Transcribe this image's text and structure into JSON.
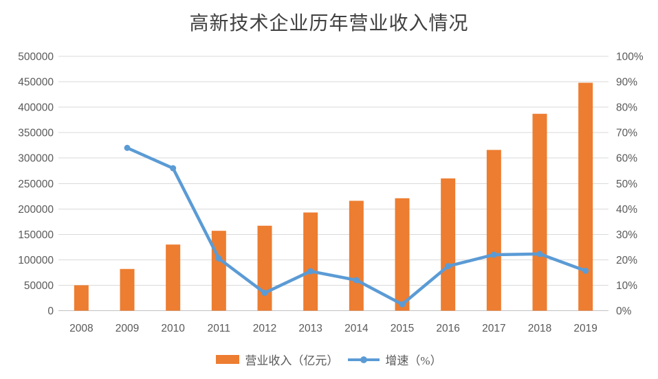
{
  "chart_data": {
    "type": "bar",
    "combo": "bar+line",
    "title": "高新技术企业历年营业收入情况",
    "categories": [
      "2008",
      "2009",
      "2010",
      "2011",
      "2012",
      "2013",
      "2014",
      "2015",
      "2016",
      "2017",
      "2018",
      "2019"
    ],
    "series": [
      {
        "name": "营业收入（亿元）",
        "type": "bar",
        "axis": "left",
        "color": "#ED7D31",
        "values": [
          50000,
          82000,
          130000,
          157000,
          167000,
          193000,
          216000,
          221000,
          260000,
          316000,
          387000,
          448000
        ]
      },
      {
        "name": "增速（%）",
        "type": "line",
        "axis": "right",
        "color": "#5B9BD5",
        "values": [
          null,
          64,
          56,
          20.5,
          7,
          15.5,
          12,
          2.5,
          17.5,
          22,
          22.3,
          15.7
        ]
      }
    ],
    "y_left": {
      "min": 0,
      "max": 500000,
      "step": 50000,
      "tick_labels": [
        "0",
        "50000",
        "100000",
        "150000",
        "200000",
        "250000",
        "300000",
        "350000",
        "400000",
        "450000",
        "500000"
      ]
    },
    "y_right": {
      "min": 0,
      "max": 100,
      "step": 10,
      "tick_labels": [
        "0%",
        "10%",
        "20%",
        "30%",
        "40%",
        "50%",
        "60%",
        "70%",
        "80%",
        "90%",
        "100%"
      ]
    },
    "grid": "horizontal",
    "legend_position": "bottom",
    "colors": {
      "gridline": "#D9D9D9",
      "axis_line": "#C0C0C0",
      "axis_text": "#595959",
      "title_text": "#404040",
      "background": "#FFFFFF"
    }
  }
}
